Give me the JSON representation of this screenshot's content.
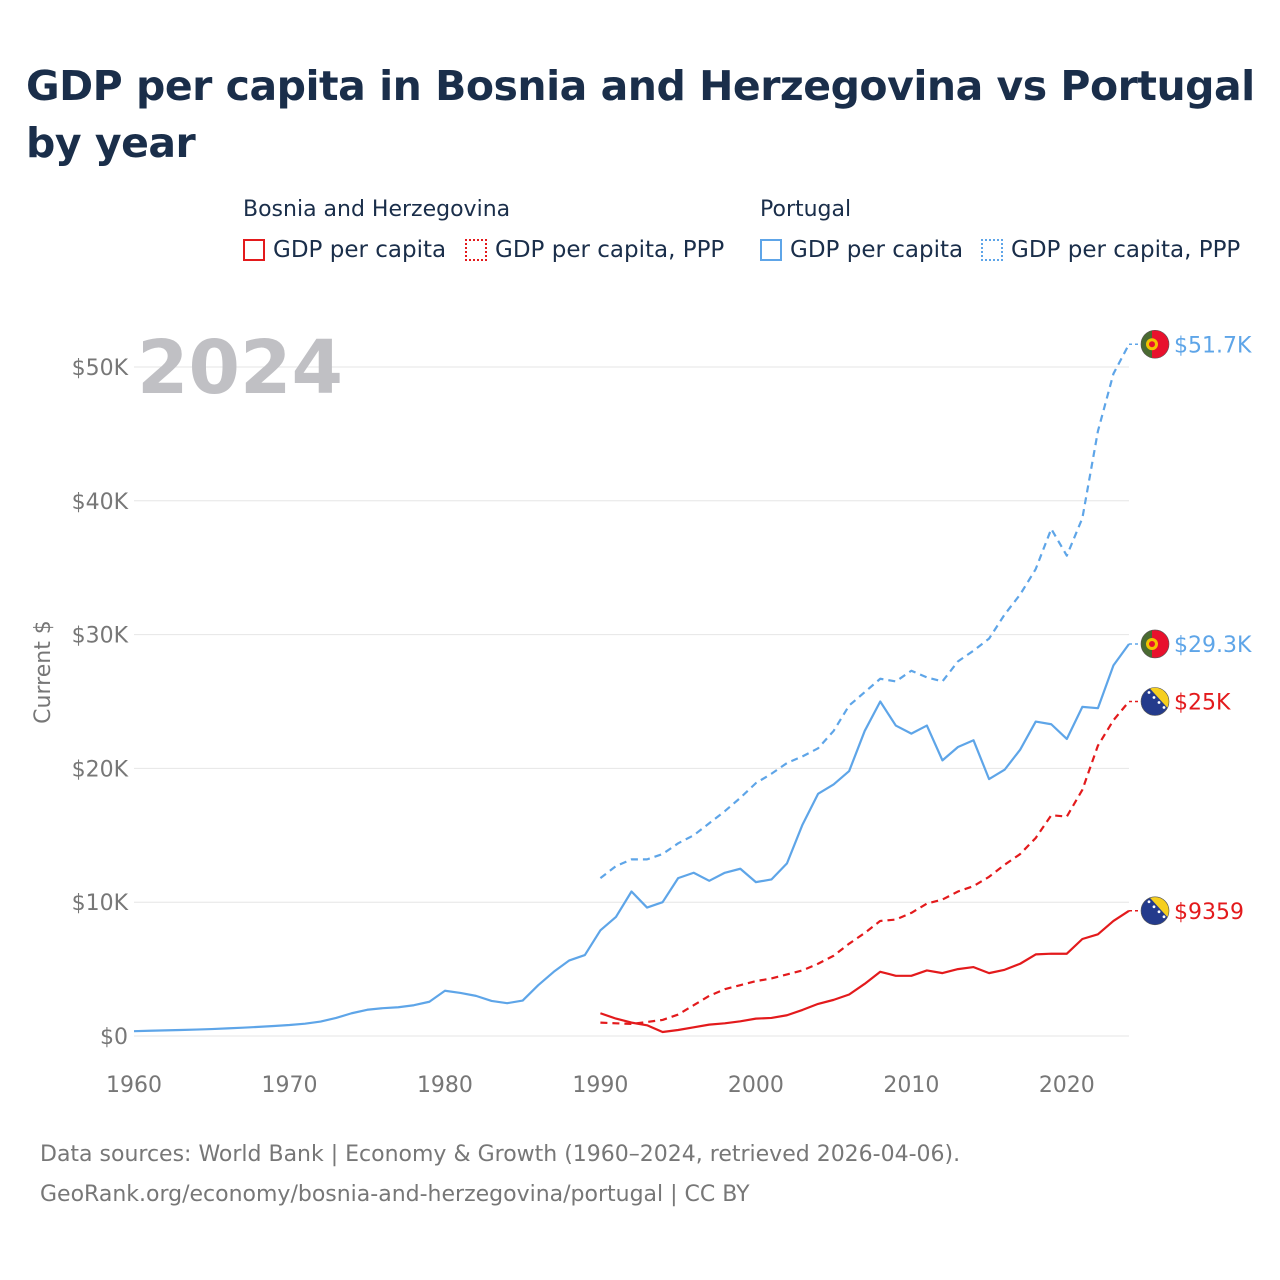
{
  "title": "GDP per capita in Bosnia and Herzegovina vs Portugal by year",
  "legend": {
    "groups": [
      {
        "country": "Bosnia and Herzegovina",
        "items": [
          {
            "label": "GDP per capita",
            "color": "#e31a1c",
            "style": "solid"
          },
          {
            "label": "GDP per capita, PPP",
            "color": "#e31a1c",
            "style": "dotted"
          }
        ]
      },
      {
        "country": "Portugal",
        "items": [
          {
            "label": "GDP per capita",
            "color": "#5ea5e8",
            "style": "solid"
          },
          {
            "label": "GDP per capita, PPP",
            "color": "#5ea5e8",
            "style": "dotted"
          }
        ]
      }
    ]
  },
  "chart_data": {
    "type": "line",
    "title": "GDP per capita in Bosnia and Herzegovina vs Portugal by year",
    "year_label": "2024",
    "ylabel": "Current $",
    "xlabel": "",
    "xlim": [
      1960,
      2024
    ],
    "ylim": [
      0,
      52000
    ],
    "x_ticks": [
      1960,
      1970,
      1980,
      1990,
      2000,
      2010,
      2020
    ],
    "y_ticks": [
      {
        "value": 0,
        "label": "$0"
      },
      {
        "value": 10000,
        "label": "$10K"
      },
      {
        "value": 20000,
        "label": "$20K"
      },
      {
        "value": 30000,
        "label": "$30K"
      },
      {
        "value": 40000,
        "label": "$40K"
      },
      {
        "value": 50000,
        "label": "$50K"
      }
    ],
    "series": [
      {
        "name": "Portugal GDP per capita, PPP",
        "country": "Portugal",
        "color": "#5ea5e8",
        "dash": "dashed",
        "end_label": "$51.7K",
        "flag": "portugal",
        "x": [
          1990,
          1991,
          1992,
          1993,
          1994,
          1995,
          1996,
          1997,
          1998,
          1999,
          2000,
          2001,
          2002,
          2003,
          2004,
          2005,
          2006,
          2007,
          2008,
          2009,
          2010,
          2011,
          2012,
          2013,
          2014,
          2015,
          2016,
          2017,
          2018,
          2019,
          2020,
          2021,
          2022,
          2023,
          2024
        ],
        "values": [
          11800,
          12700,
          13200,
          13200,
          13600,
          14400,
          15000,
          15900,
          16800,
          17800,
          18900,
          19600,
          20400,
          20900,
          21500,
          22800,
          24700,
          25700,
          26700,
          26500,
          27300,
          26800,
          26500,
          28000,
          28800,
          29700,
          31500,
          33000,
          34900,
          37900,
          35900,
          38700,
          45200,
          49500,
          51700
        ]
      },
      {
        "name": "Portugal GDP per capita",
        "country": "Portugal",
        "color": "#5ea5e8",
        "dash": "solid",
        "end_label": "$29.3K",
        "flag": "portugal",
        "x": [
          1960,
          1961,
          1962,
          1963,
          1964,
          1965,
          1966,
          1967,
          1968,
          1969,
          1970,
          1971,
          1972,
          1973,
          1974,
          1975,
          1976,
          1977,
          1978,
          1979,
          1980,
          1981,
          1982,
          1983,
          1984,
          1985,
          1986,
          1987,
          1988,
          1989,
          1990,
          1991,
          1992,
          1993,
          1994,
          1995,
          1996,
          1997,
          1998,
          1999,
          2000,
          2001,
          2002,
          2003,
          2004,
          2005,
          2006,
          2007,
          2008,
          2009,
          2010,
          2011,
          2012,
          2013,
          2014,
          2015,
          2016,
          2017,
          2018,
          2019,
          2020,
          2021,
          2022,
          2023,
          2024
        ],
        "values": [
          360,
          390,
          420,
          450,
          480,
          520,
          570,
          620,
          680,
          750,
          820,
          920,
          1080,
          1350,
          1700,
          1960,
          2080,
          2150,
          2300,
          2560,
          3380,
          3220,
          3000,
          2620,
          2450,
          2650,
          3800,
          4800,
          5650,
          6050,
          7900,
          8900,
          10800,
          9600,
          10000,
          11800,
          12200,
          11600,
          12200,
          12500,
          11500,
          11700,
          12900,
          15800,
          18100,
          18800,
          19800,
          22800,
          25000,
          23200,
          22600,
          23200,
          20600,
          21600,
          22100,
          19200,
          19900,
          21400,
          23500,
          23300,
          22200,
          24600,
          24500,
          27700,
          29300
        ]
      },
      {
        "name": "Bosnia and Herzegovina GDP per capita, PPP",
        "country": "Bosnia and Herzegovina",
        "color": "#e31a1c",
        "dash": "dashed",
        "end_label": "$25K",
        "flag": "bosnia",
        "x": [
          1990,
          1991,
          1992,
          1993,
          1994,
          1995,
          1996,
          1997,
          1998,
          1999,
          2000,
          2001,
          2002,
          2003,
          2004,
          2005,
          2006,
          2007,
          2008,
          2009,
          2010,
          2011,
          2012,
          2013,
          2014,
          2015,
          2016,
          2017,
          2018,
          2019,
          2020,
          2021,
          2022,
          2023,
          2024
        ],
        "values": [
          1000,
          950,
          900,
          1050,
          1200,
          1600,
          2300,
          3000,
          3500,
          3800,
          4100,
          4300,
          4600,
          4900,
          5400,
          6000,
          6900,
          7700,
          8600,
          8700,
          9200,
          9900,
          10200,
          10800,
          11200,
          11900,
          12800,
          13600,
          14800,
          16500,
          16400,
          18400,
          21700,
          23600,
          25000
        ]
      },
      {
        "name": "Bosnia and Herzegovina GDP per capita",
        "country": "Bosnia and Herzegovina",
        "color": "#e31a1c",
        "dash": "solid",
        "end_label": "$9359",
        "flag": "bosnia",
        "x": [
          1990,
          1991,
          1992,
          1993,
          1994,
          1995,
          1996,
          1997,
          1998,
          1999,
          2000,
          2001,
          2002,
          2003,
          2004,
          2005,
          2006,
          2007,
          2008,
          2009,
          2010,
          2011,
          2012,
          2013,
          2014,
          2015,
          2016,
          2017,
          2018,
          2019,
          2020,
          2021,
          2022,
          2023,
          2024
        ],
        "values": [
          1700,
          1300,
          1000,
          800,
          300,
          450,
          650,
          850,
          950,
          1100,
          1300,
          1350,
          1550,
          1950,
          2400,
          2700,
          3100,
          3900,
          4800,
          4500,
          4500,
          4900,
          4700,
          5000,
          5150,
          4700,
          4950,
          5400,
          6100,
          6150,
          6150,
          7250,
          7600,
          8600,
          9359
        ]
      }
    ]
  },
  "footer": {
    "sources": "Data sources: World Bank | Economy & Growth (1960–2024, retrieved 2026-04-06).",
    "credit": "GeoRank.org/economy/bosnia-and-herzegovina/portugal | CC BY"
  }
}
